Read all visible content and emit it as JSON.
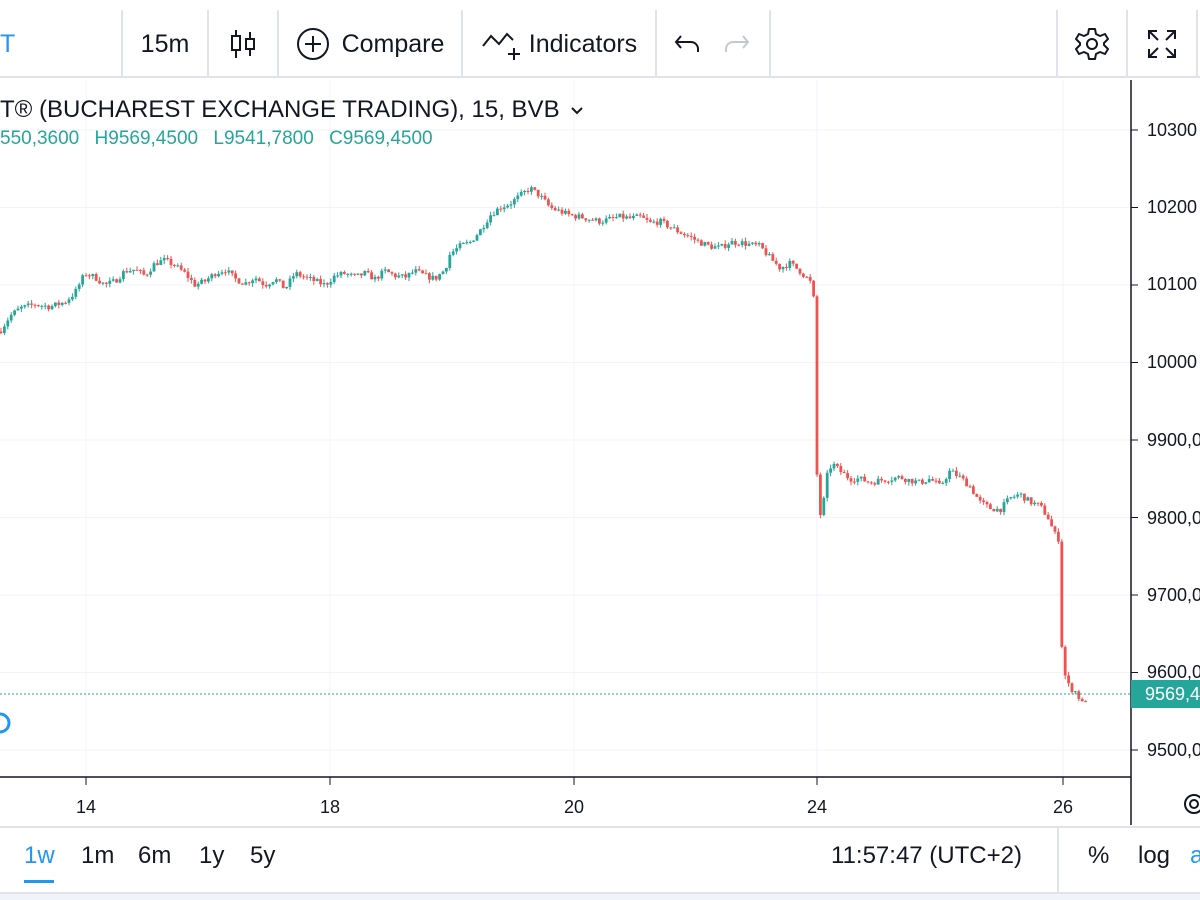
{
  "toolbar": {
    "symbol_fragment": "T",
    "interval": "15m",
    "compare_label": "Compare",
    "indicators_label": "Indicators"
  },
  "legend": {
    "title": "T® (BUCHAREST EXCHANGE TRADING), 15, BVB",
    "open_value": "550,3600",
    "high_key": "H",
    "high_value": "9569,4500",
    "low_key": "L",
    "low_value": "9541,7800",
    "close_key": "C",
    "close_value": "9569,4500"
  },
  "price_axis": {
    "labels": [
      "10300",
      "10200",
      "10100",
      "10000",
      "9900,0",
      "9800,0",
      "9700,0",
      "9600,0",
      "9500,0"
    ],
    "last_price_label": "9569,4"
  },
  "time_axis": {
    "labels": [
      "14",
      "18",
      "20",
      "24",
      "26"
    ]
  },
  "bottom": {
    "ranges": [
      "1w",
      "1m",
      "6m",
      "1y",
      "5y"
    ],
    "active_range": "1w",
    "clock": "11:57:47 (UTC+2)",
    "percent_label": "%",
    "log_label": "log",
    "auto_fragment": "a"
  },
  "colors": {
    "up": "#26a69a",
    "down": "#ef5350",
    "accent": "#2196f3"
  },
  "chart_data": {
    "type": "line",
    "description_series": "price",
    "x_labels": [
      "14",
      "18",
      "20",
      "24",
      "26"
    ],
    "ylim": [
      9450,
      10350
    ],
    "series": [
      {
        "values": [
          [
            0,
            10040
          ],
          [
            10,
            10060
          ],
          [
            20,
            10070
          ],
          [
            35,
            10075
          ],
          [
            50,
            10072
          ],
          [
            65,
            10078
          ],
          [
            75,
            10090
          ],
          [
            85,
            10115
          ],
          [
            95,
            10110
          ],
          [
            105,
            10100
          ],
          [
            115,
            10105
          ],
          [
            125,
            10118
          ],
          [
            135,
            10120
          ],
          [
            145,
            10112
          ],
          [
            155,
            10128
          ],
          [
            165,
            10132
          ],
          [
            175,
            10125
          ],
          [
            185,
            10115
          ],
          [
            195,
            10100
          ],
          [
            205,
            10105
          ],
          [
            215,
            10115
          ],
          [
            225,
            10120
          ],
          [
            235,
            10108
          ],
          [
            245,
            10102
          ],
          [
            255,
            10110
          ],
          [
            265,
            10100
          ],
          [
            275,
            10108
          ],
          [
            285,
            10095
          ],
          [
            295,
            10115
          ],
          [
            305,
            10110
          ],
          [
            315,
            10105
          ],
          [
            325,
            10100
          ],
          [
            335,
            10112
          ],
          [
            345,
            10115
          ],
          [
            355,
            10110
          ],
          [
            365,
            10115
          ],
          [
            375,
            10108
          ],
          [
            385,
            10118
          ],
          [
            395,
            10112
          ],
          [
            405,
            10110
          ],
          [
            415,
            10118
          ],
          [
            425,
            10112
          ],
          [
            435,
            10108
          ],
          [
            445,
            10120
          ],
          [
            450,
            10140
          ],
          [
            460,
            10150
          ],
          [
            470,
            10155
          ],
          [
            480,
            10170
          ],
          [
            490,
            10190
          ],
          [
            500,
            10200
          ],
          [
            510,
            10205
          ],
          [
            520,
            10215
          ],
          [
            530,
            10225
          ],
          [
            540,
            10215
          ],
          [
            550,
            10200
          ],
          [
            560,
            10195
          ],
          [
            570,
            10190
          ],
          [
            580,
            10188
          ],
          [
            590,
            10185
          ],
          [
            600,
            10182
          ],
          [
            610,
            10185
          ],
          [
            620,
            10188
          ],
          [
            630,
            10186
          ],
          [
            640,
            10188
          ],
          [
            650,
            10180
          ],
          [
            660,
            10182
          ],
          [
            670,
            10175
          ],
          [
            680,
            10168
          ],
          [
            690,
            10162
          ],
          [
            700,
            10155
          ],
          [
            710,
            10150
          ],
          [
            720,
            10148
          ],
          [
            730,
            10155
          ],
          [
            740,
            10155
          ],
          [
            750,
            10152
          ],
          [
            760,
            10150
          ],
          [
            770,
            10135
          ],
          [
            780,
            10122
          ],
          [
            790,
            10128
          ],
          [
            800,
            10118
          ],
          [
            810,
            10105
          ],
          [
            814,
            10080
          ],
          [
            816,
            9900
          ],
          [
            818,
            9810
          ],
          [
            822,
            9800
          ],
          [
            826,
            9850
          ],
          [
            832,
            9870
          ],
          [
            840,
            9860
          ],
          [
            850,
            9850
          ],
          [
            860,
            9850
          ],
          [
            870,
            9845
          ],
          [
            880,
            9848
          ],
          [
            890,
            9850
          ],
          [
            900,
            9852
          ],
          [
            910,
            9848
          ],
          [
            920,
            9845
          ],
          [
            930,
            9850
          ],
          [
            940,
            9840
          ],
          [
            950,
            9860
          ],
          [
            960,
            9852
          ],
          [
            970,
            9840
          ],
          [
            980,
            9820
          ],
          [
            990,
            9812
          ],
          [
            1000,
            9810
          ],
          [
            1010,
            9825
          ],
          [
            1020,
            9830
          ],
          [
            1030,
            9820
          ],
          [
            1040,
            9815
          ],
          [
            1048,
            9800
          ],
          [
            1054,
            9780
          ],
          [
            1060,
            9770
          ],
          [
            1062,
            9620
          ],
          [
            1066,
            9590
          ],
          [
            1070,
            9580
          ],
          [
            1076,
            9575
          ],
          [
            1082,
            9560
          ],
          [
            1088,
            9569
          ]
        ]
      }
    ]
  }
}
